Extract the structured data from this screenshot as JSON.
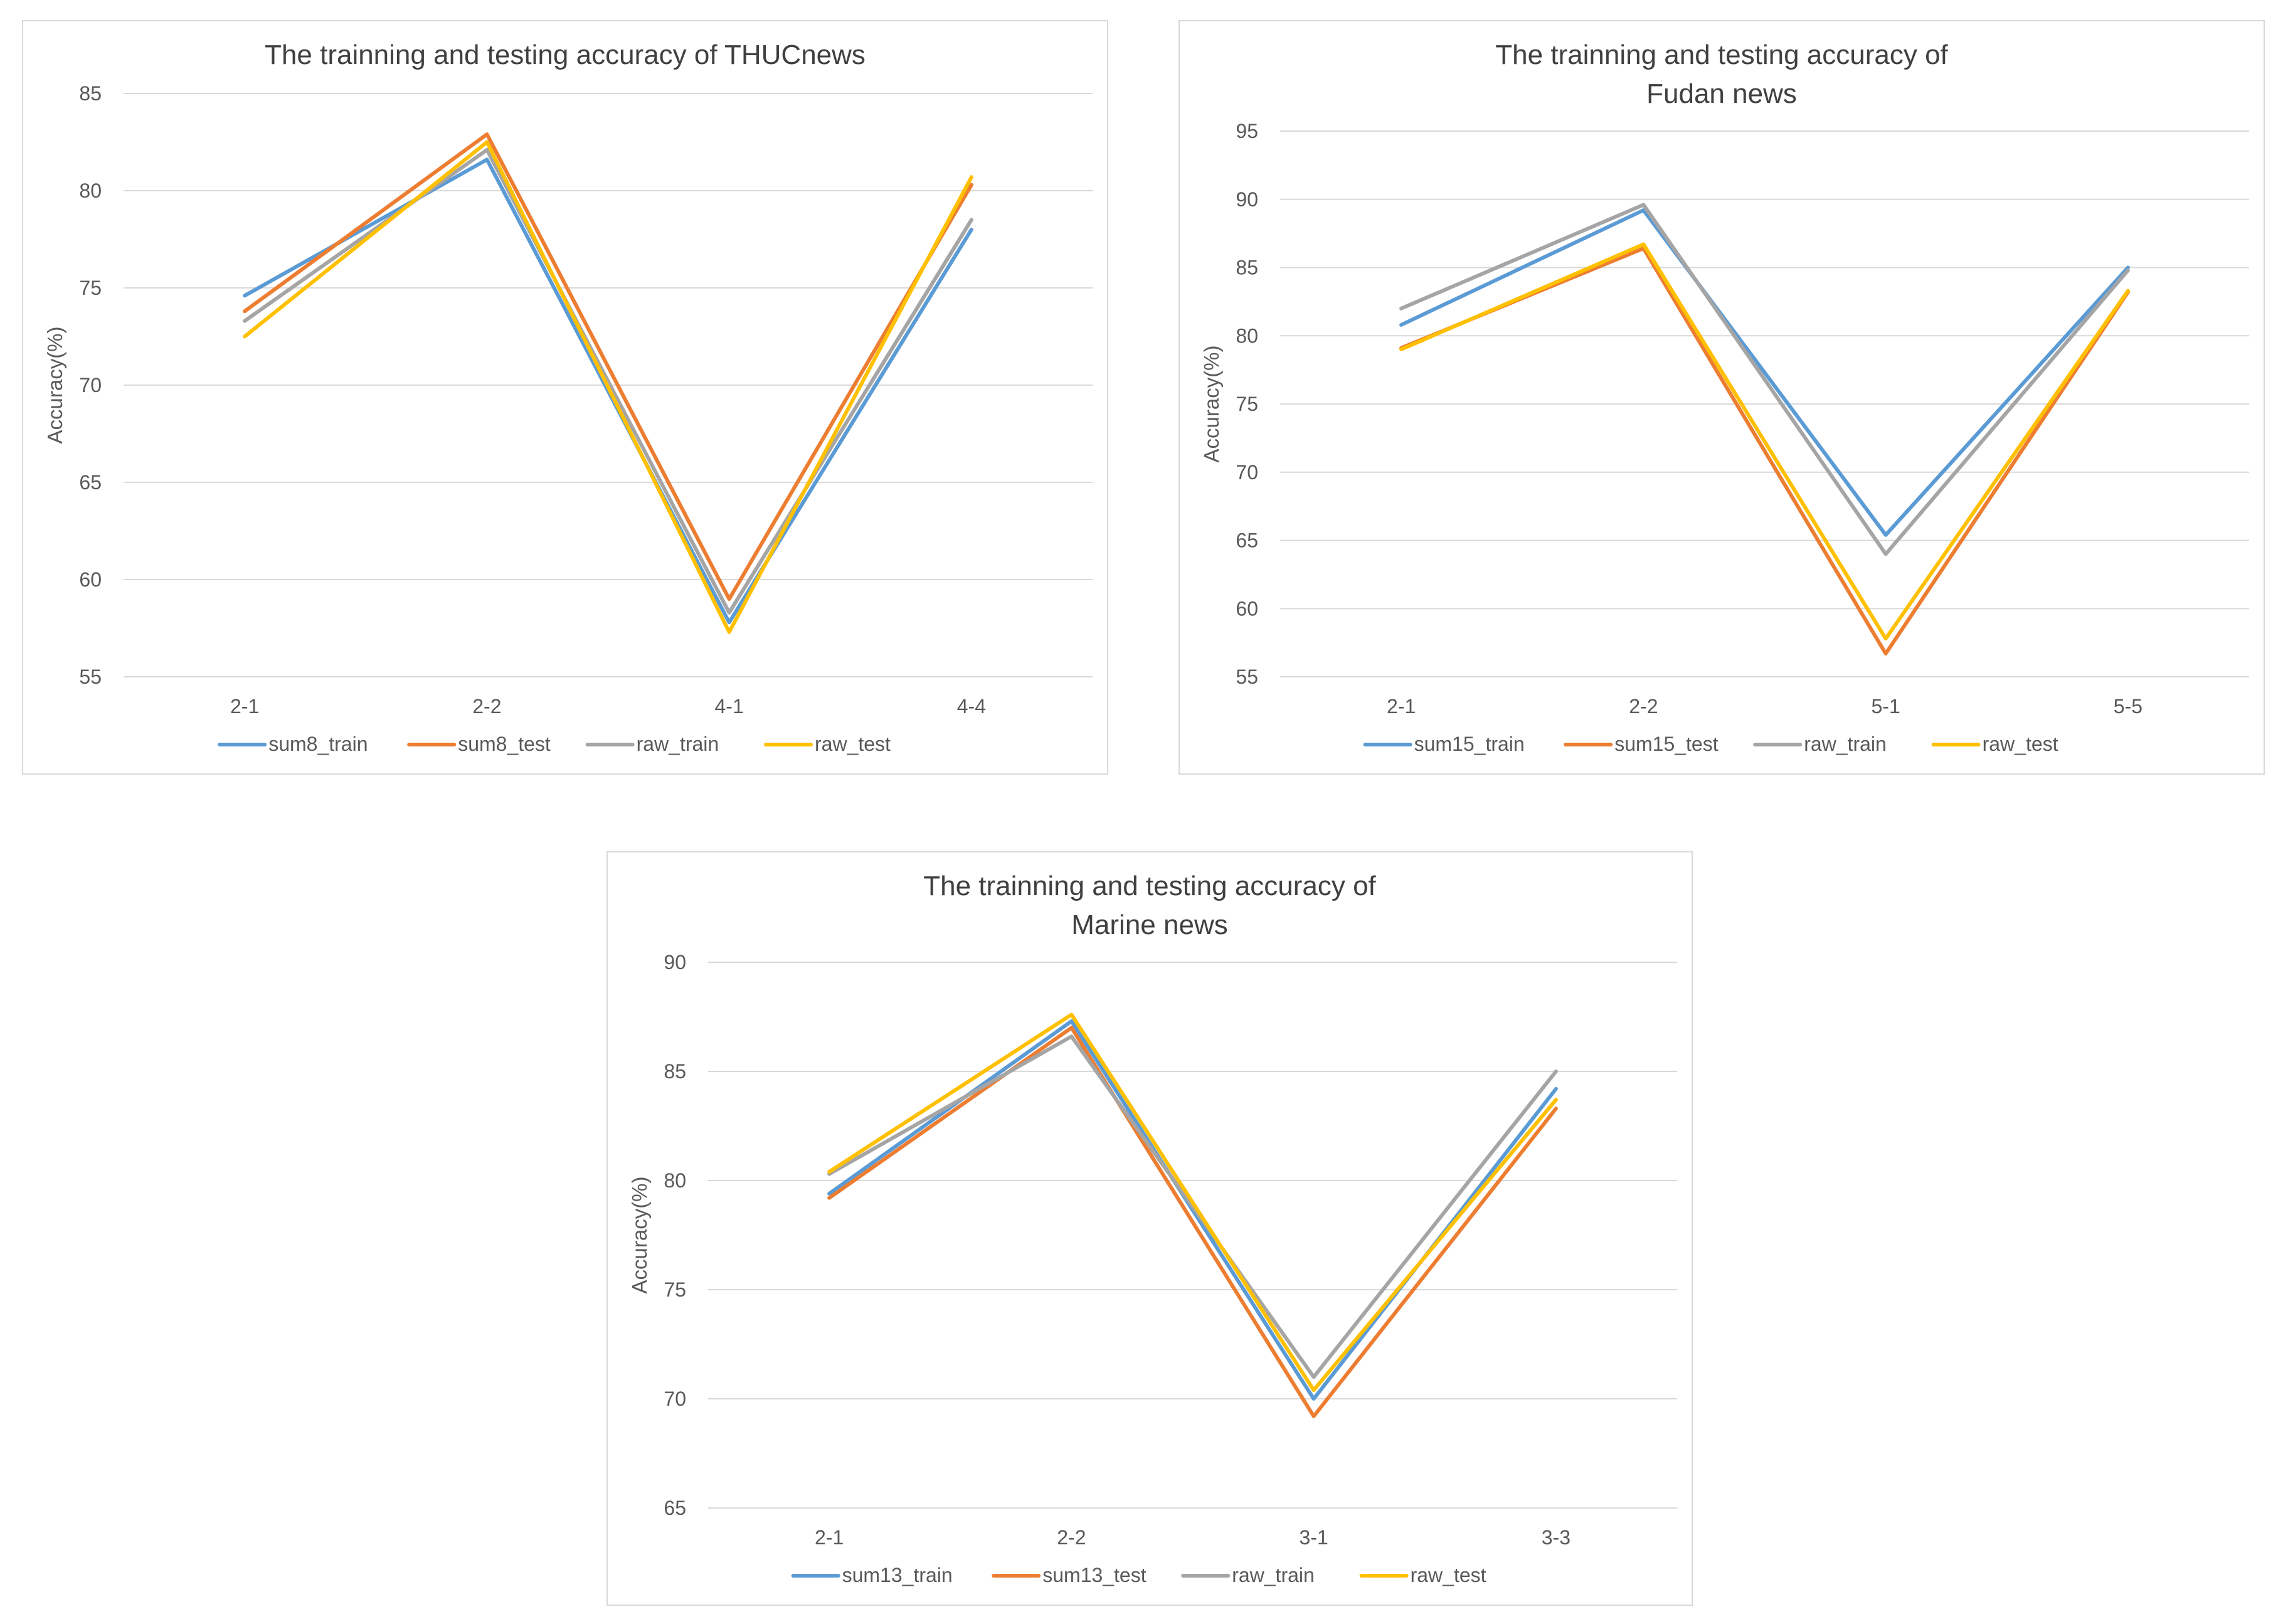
{
  "chart_data": [
    {
      "type": "line",
      "title": [
        "The trainning and testing accuracy of THUCnews"
      ],
      "xlabel": "",
      "ylabel": "Accuracy(%)",
      "ylim": [
        55,
        85
      ],
      "yticks": [
        55,
        60,
        65,
        70,
        75,
        80,
        85
      ],
      "categories": [
        "2-1",
        "2-2",
        "4-1",
        "4-4"
      ],
      "grid": true,
      "legend": "bottom",
      "series": [
        {
          "name": "sum8_train",
          "color": "#5B9BD5",
          "values": [
            74.6,
            81.6,
            57.8,
            78.0
          ]
        },
        {
          "name": "sum8_test",
          "color": "#ED7D31",
          "values": [
            73.8,
            82.9,
            59.0,
            80.3
          ]
        },
        {
          "name": "raw_train",
          "color": "#A5A5A5",
          "values": [
            73.3,
            82.1,
            58.3,
            78.5
          ]
        },
        {
          "name": "raw_test",
          "color": "#FFC000",
          "values": [
            72.5,
            82.5,
            57.3,
            80.7
          ]
        }
      ]
    },
    {
      "type": "line",
      "title": [
        "The trainning and testing accuracy of",
        "Fudan news"
      ],
      "xlabel": "",
      "ylabel": "Accuracy(%)",
      "ylim": [
        55,
        95
      ],
      "yticks": [
        55,
        60,
        65,
        70,
        75,
        80,
        85,
        90,
        95
      ],
      "categories": [
        "2-1",
        "2-2",
        "5-1",
        "5-5"
      ],
      "grid": true,
      "legend": "bottom",
      "series": [
        {
          "name": "sum15_train",
          "color": "#5B9BD5",
          "values": [
            80.8,
            89.2,
            65.4,
            85.0
          ]
        },
        {
          "name": "sum15_test",
          "color": "#ED7D31",
          "values": [
            79.1,
            86.4,
            56.7,
            83.2
          ]
        },
        {
          "name": "raw_train",
          "color": "#A5A5A5",
          "values": [
            82.0,
            89.6,
            64.0,
            84.8
          ]
        },
        {
          "name": "raw_test",
          "color": "#FFC000",
          "values": [
            79.0,
            86.7,
            57.8,
            83.3
          ]
        }
      ]
    },
    {
      "type": "line",
      "title": [
        "The trainning and testing accuracy of",
        "Marine news"
      ],
      "xlabel": "",
      "ylabel": "Accuracy(%)",
      "ylim": [
        65,
        90
      ],
      "yticks": [
        65,
        70,
        75,
        80,
        85,
        90
      ],
      "categories": [
        "2-1",
        "2-2",
        "3-1",
        "3-3"
      ],
      "grid": true,
      "legend": "bottom",
      "series": [
        {
          "name": "sum13_train",
          "color": "#5B9BD5",
          "values": [
            79.4,
            87.3,
            70.0,
            84.2
          ]
        },
        {
          "name": "sum13_test",
          "color": "#ED7D31",
          "values": [
            79.2,
            87.0,
            69.2,
            83.3
          ]
        },
        {
          "name": "raw_train",
          "color": "#A5A5A5",
          "values": [
            80.3,
            86.6,
            71.0,
            85.0
          ]
        },
        {
          "name": "raw_test",
          "color": "#FFC000",
          "values": [
            80.4,
            87.6,
            70.4,
            83.7
          ]
        }
      ]
    }
  ]
}
